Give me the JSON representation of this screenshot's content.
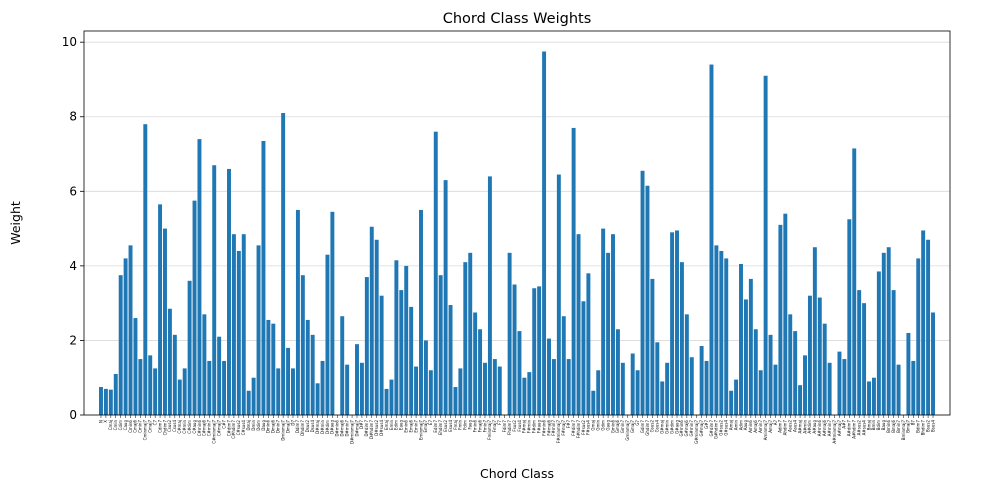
{
  "chart_data": {
    "type": "bar",
    "title": "Chord Class Weights",
    "x_label": "Chord Class",
    "y_label": "Weight",
    "categories": [
      "N",
      "X",
      "Cmaj",
      "Cmin",
      "Cdim",
      "Caug",
      "Cmin6",
      "Cmaj6",
      "Cmin7",
      "Cminmaj7",
      "Cmaj7",
      "C7",
      "Cdim7",
      "Chdim7",
      "Csus2",
      "Csus4",
      "C#maj",
      "C#min",
      "C#dim",
      "C#aug",
      "C#min6",
      "C#maj6",
      "C#min7",
      "C#minmaj7",
      "C#maj7",
      "C#7",
      "C#dim7",
      "C#hdim7",
      "C#sus2",
      "C#sus4",
      "Dmaj",
      "Dmin",
      "Ddim",
      "Daug",
      "Dmin6",
      "Dmaj6",
      "Dmin7",
      "Dminmaj7",
      "Dmaj7",
      "D7",
      "Ddim7",
      "Dhdim7",
      "Dsus2",
      "Dsus4",
      "D#maj",
      "D#min",
      "D#dim",
      "D#aug",
      "D#min6",
      "D#maj6",
      "D#min7",
      "D#minmaj7",
      "D#maj7",
      "D#7",
      "D#dim7",
      "D#hdim7",
      "D#sus2",
      "D#sus4",
      "Emaj",
      "Emin",
      "Edim",
      "Eaug",
      "Emin6",
      "Emaj6",
      "Emin7",
      "Eminmaj7",
      "Emaj7",
      "E7",
      "Edim7",
      "Ehdim7",
      "Esus2",
      "Esus4",
      "Fmaj",
      "Fmin",
      "Fdim",
      "Faug",
      "Fmin6",
      "Fmaj6",
      "Fmin7",
      "Fminmaj7",
      "Fmaj7",
      "F7",
      "Fdim7",
      "Fhdim7",
      "Fsus2",
      "Fsus4",
      "F#maj",
      "F#min",
      "F#dim",
      "F#aug",
      "F#min6",
      "F#maj6",
      "F#min7",
      "F#minmaj7",
      "F#maj7",
      "F#7",
      "F#dim7",
      "F#hdim7",
      "F#sus2",
      "F#sus4",
      "Gmaj",
      "Gmin",
      "Gdim",
      "Gaug",
      "Gmin6",
      "Gmaj6",
      "Gmin7",
      "Gminmaj7",
      "Gmaj7",
      "G7",
      "Gdim7",
      "Ghdim7",
      "Gsus2",
      "Gsus4",
      "G#maj",
      "G#min",
      "G#dim",
      "G#aug",
      "G#min6",
      "G#maj6",
      "G#min7",
      "G#minmaj7",
      "G#maj7",
      "G#7",
      "G#dim7",
      "G#hdim7",
      "G#sus2",
      "G#sus4",
      "Amaj",
      "Amin",
      "Adim",
      "Aaug",
      "Amin6",
      "Amaj6",
      "Amin7",
      "Aminmaj7",
      "Amaj7",
      "A7",
      "Adim7",
      "Ahdim7",
      "Asus2",
      "Asus4",
      "A#maj",
      "A#min",
      "A#dim",
      "A#aug",
      "A#min6",
      "A#maj6",
      "A#min7",
      "A#minmaj7",
      "A#maj7",
      "A#7",
      "A#dim7",
      "A#hdim7",
      "A#sus2",
      "A#sus4",
      "Bmaj",
      "Bmin",
      "Bdim",
      "Baug",
      "Bmin6",
      "Bmaj6",
      "Bmin7",
      "Bminmaj7",
      "Bmaj7",
      "B7",
      "Bdim7",
      "Bhdim7",
      "Bsus2",
      "Bsus4"
    ],
    "values": [
      0.75,
      0.7,
      0.68,
      1.1,
      3.75,
      4.2,
      4.55,
      2.6,
      1.5,
      7.8,
      1.6,
      1.25,
      5.65,
      5.0,
      2.85,
      2.15,
      0.95,
      1.25,
      3.6,
      5.75,
      7.4,
      2.7,
      1.45,
      6.7,
      2.1,
      1.45,
      6.6,
      4.85,
      4.4,
      4.85,
      0.65,
      1.0,
      4.55,
      7.35,
      2.55,
      2.45,
      1.25,
      8.1,
      1.8,
      1.25,
      5.5,
      3.75,
      2.55,
      2.15,
      0.85,
      1.45,
      4.3,
      5.45,
      0,
      2.65,
      1.35,
      0,
      1.9,
      1.4,
      3.7,
      5.05,
      4.7,
      3.2,
      0.7,
      0.95,
      4.15,
      3.35,
      4.0,
      2.9,
      1.3,
      5.5,
      2.0,
      1.2,
      7.6,
      3.75,
      6.3,
      2.95,
      0.75,
      1.25,
      4.1,
      4.35,
      2.75,
      2.3,
      1.4,
      6.4,
      1.5,
      1.3,
      0,
      4.35,
      3.5,
      2.25,
      1.0,
      1.15,
      3.4,
      3.45,
      9.75,
      2.05,
      1.5,
      6.45,
      2.65,
      1.5,
      7.7,
      4.85,
      3.05,
      3.8,
      0.65,
      1.2,
      5.0,
      4.35,
      4.85,
      2.3,
      1.4,
      0,
      1.65,
      1.2,
      6.55,
      6.15,
      3.65,
      1.95,
      0.9,
      1.4,
      4.9,
      4.95,
      4.1,
      2.7,
      1.55,
      0,
      1.85,
      1.45,
      9.4,
      4.55,
      4.4,
      4.2,
      0.65,
      0.95,
      4.05,
      3.1,
      3.65,
      2.3,
      1.2,
      9.1,
      2.15,
      1.35,
      5.1,
      5.4,
      2.7,
      2.25,
      0.8,
      1.6,
      3.2,
      4.5,
      3.15,
      2.45,
      1.4,
      0,
      1.7,
      1.5,
      5.25,
      7.15,
      3.35,
      3.0,
      0.9,
      1.0,
      3.85,
      4.35,
      4.5,
      3.35,
      1.35,
      0,
      2.2,
      1.45,
      4.2,
      4.95,
      4.7,
      2.75
    ],
    "color": "#1f77b4",
    "ylim": [
      0,
      10.3
    ],
    "yticks": [
      0,
      2,
      4,
      6,
      8,
      10
    ],
    "grid": true
  }
}
